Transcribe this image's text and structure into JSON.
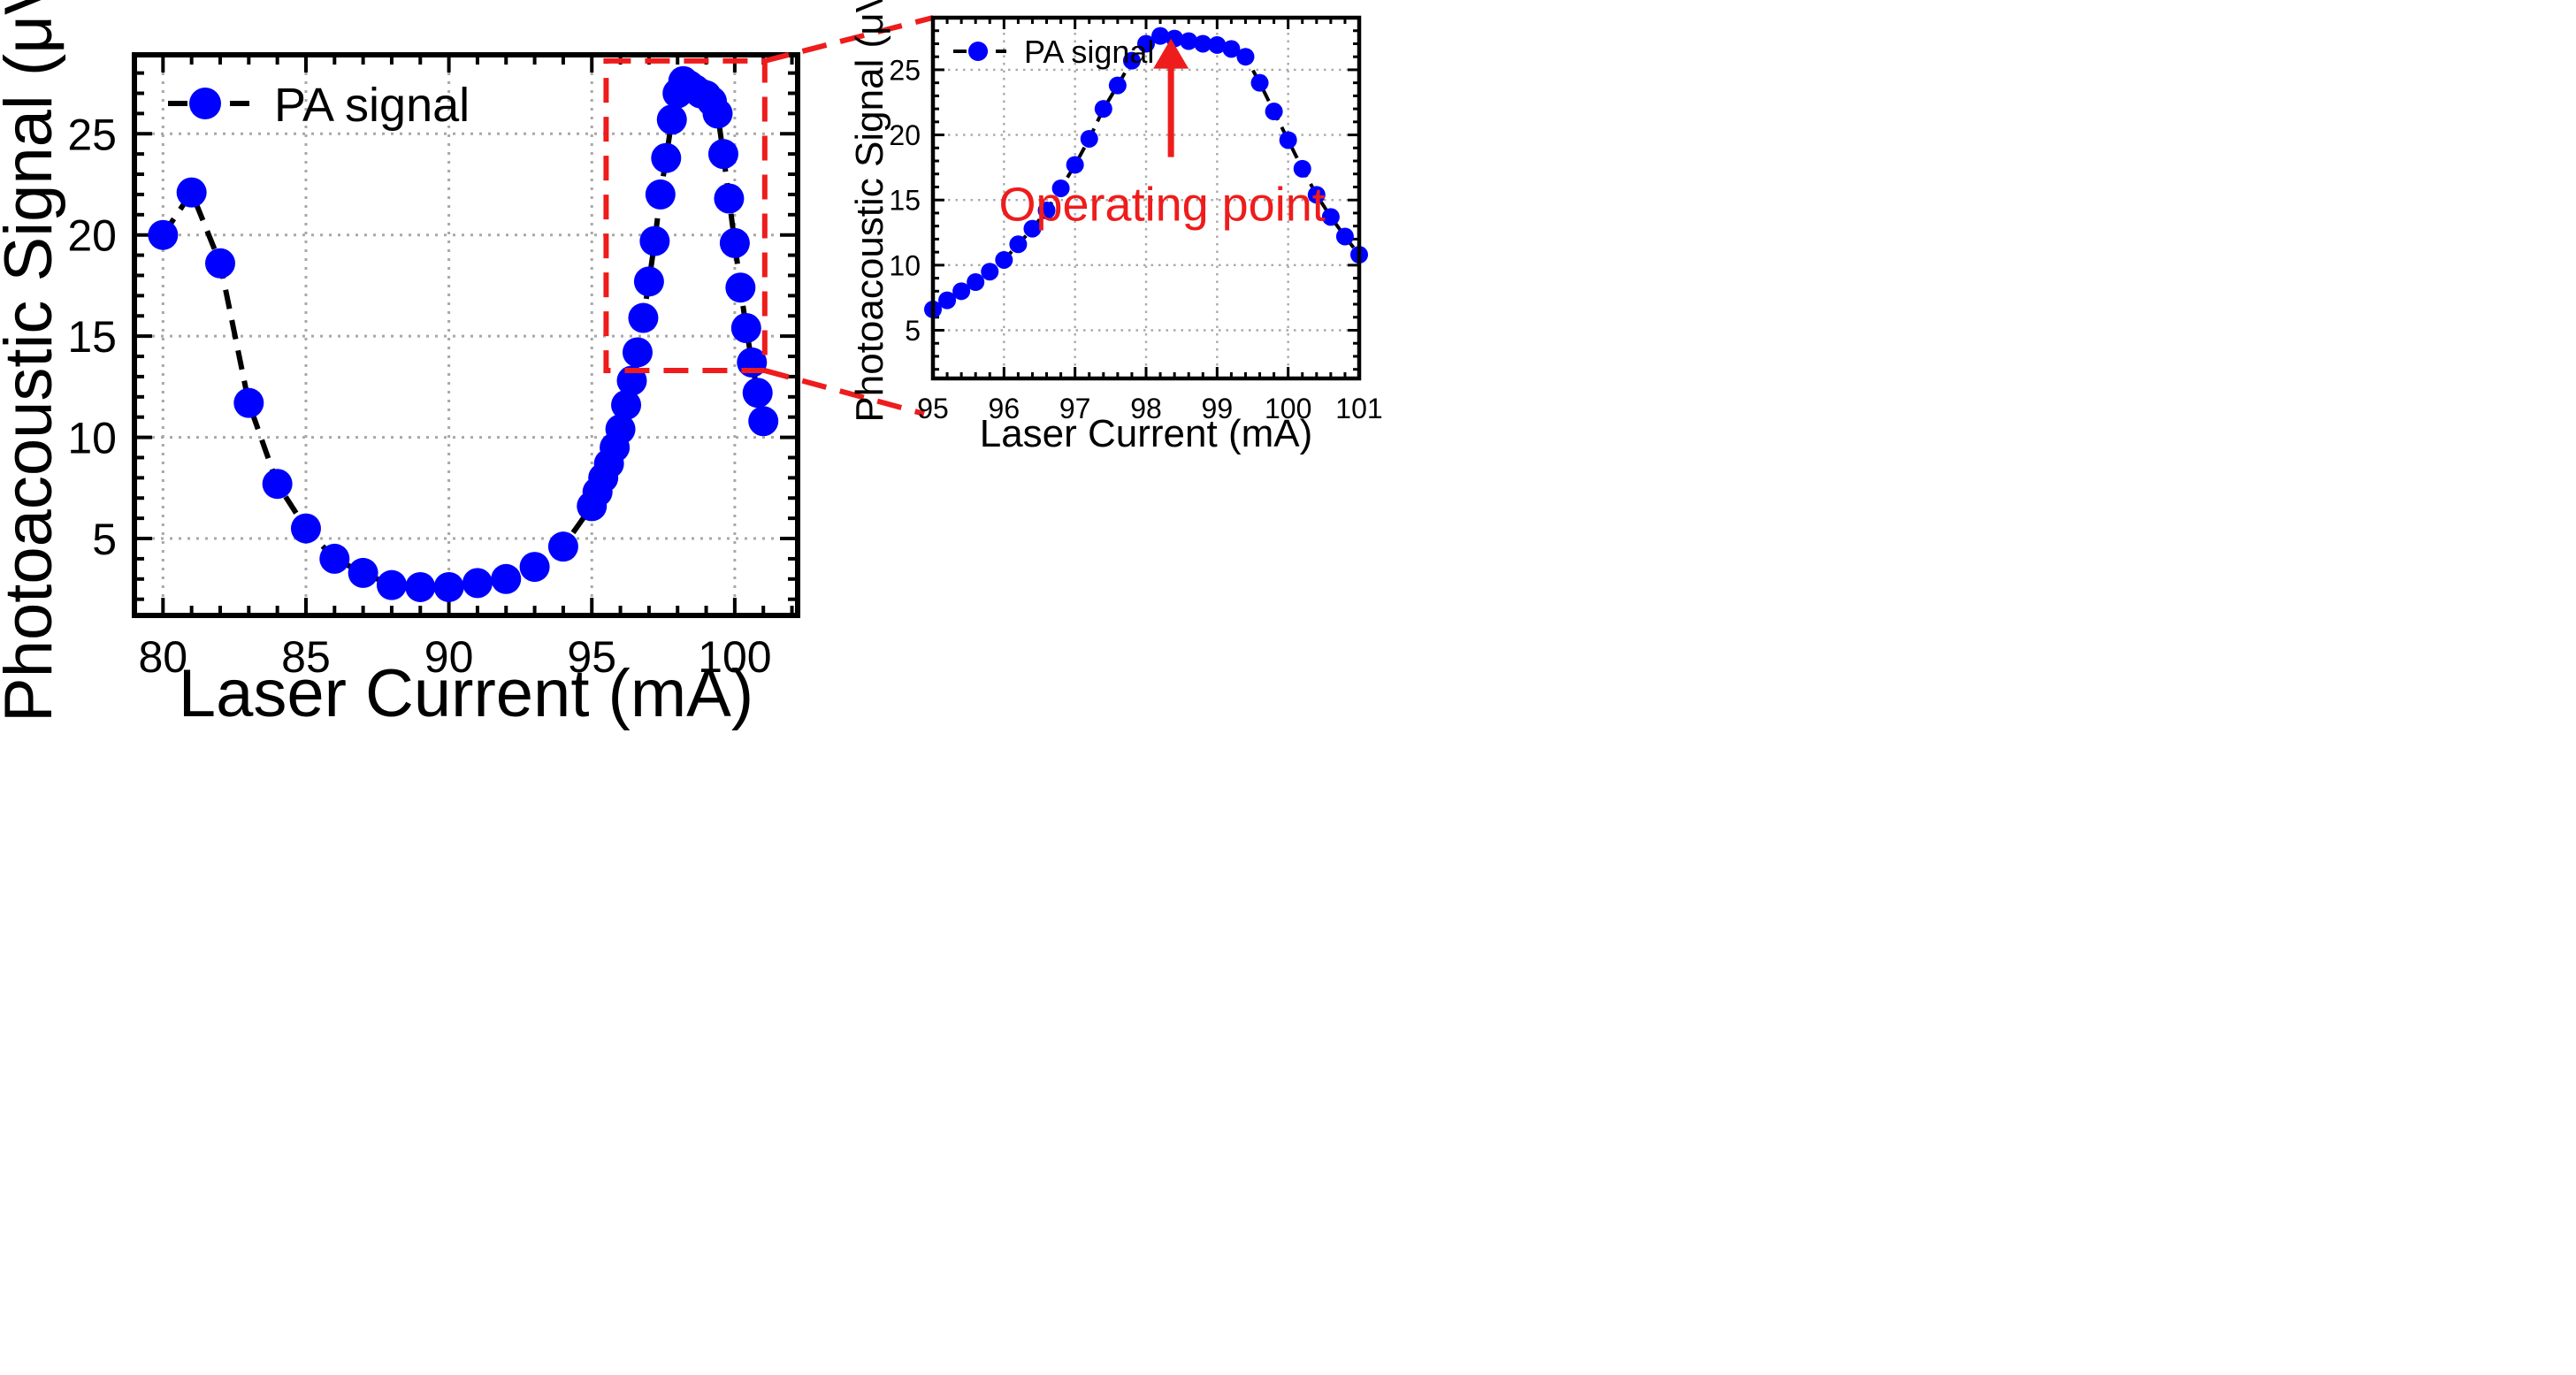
{
  "chart_data": [
    {
      "type": "line",
      "xlabel": "Laser Current (mA)",
      "ylabel": "Photoacoustic Signal (μV)",
      "xlim": [
        79,
        102.2
      ],
      "ylim": [
        1.2,
        28.9
      ],
      "xticks": [
        80,
        85,
        90,
        95,
        100
      ],
      "yticks": [
        5,
        10,
        15,
        20,
        25
      ],
      "xtick_labels": [
        "80",
        "85",
        "90",
        "95",
        "100"
      ],
      "ytick_labels": [
        "5",
        "10",
        "15",
        "20",
        "25"
      ],
      "minor_x_step": 1,
      "minor_y_step": 1,
      "grid": true,
      "legend": {
        "position": "top-left",
        "entries": [
          "PA signal"
        ]
      },
      "series": [
        {
          "name": "PA signal",
          "color": "#0000ff",
          "line_color": "#000000",
          "line_style": "dashed",
          "x": [
            80,
            81,
            82,
            83,
            84,
            85,
            86,
            87,
            88,
            89,
            90,
            91,
            92,
            93,
            94,
            95,
            95.2,
            95.4,
            95.6,
            95.8,
            96,
            96.2,
            96.4,
            96.6,
            96.8,
            97,
            97.2,
            97.4,
            97.6,
            97.8,
            98,
            98.2,
            98.4,
            98.6,
            98.8,
            99,
            99.2,
            99.4,
            99.6,
            99.8,
            100,
            100.2,
            100.4,
            100.6,
            100.8,
            101
          ],
          "y": [
            20,
            22.1,
            18.6,
            11.7,
            7.7,
            5.5,
            4,
            3.3,
            2.7,
            2.6,
            2.6,
            2.8,
            3,
            3.6,
            4.6,
            6.6,
            7.3,
            8,
            8.7,
            9.5,
            10.4,
            11.6,
            12.8,
            14.2,
            15.9,
            17.7,
            19.7,
            22,
            23.8,
            25.7,
            27,
            27.6,
            27.4,
            27.2,
            27,
            26.9,
            26.6,
            26,
            24,
            21.8,
            19.6,
            17.4,
            15.4,
            13.7,
            12.2,
            10.8
          ]
        }
      ]
    },
    {
      "type": "line",
      "xlabel": "Laser Current (mA)",
      "ylabel": "Photoacoustic Signal (μV)",
      "xlim": [
        95,
        101
      ],
      "ylim": [
        1.3,
        29
      ],
      "xticks": [
        95,
        96,
        97,
        98,
        99,
        100,
        101
      ],
      "yticks": [
        5,
        10,
        15,
        20,
        25
      ],
      "xtick_labels": [
        "95",
        "96",
        "97",
        "98",
        "99",
        "100",
        "101"
      ],
      "ytick_labels": [
        "5",
        "10",
        "15",
        "20",
        "25"
      ],
      "minor_x_step": 0.2,
      "minor_y_step": 1,
      "grid": true,
      "legend": {
        "position": "top-left",
        "entries": [
          "PA signal"
        ]
      },
      "annotations": [
        {
          "text": "Operating point",
          "color": "#ee1c1c",
          "arrow_to": [
            98.35,
            27.4
          ],
          "arrow_from": [
            98.35,
            18.3
          ]
        }
      ],
      "series": [
        {
          "name": "PA signal",
          "color": "#0000ff",
          "line_color": "#000000",
          "line_style": "dashed",
          "x": [
            95,
            95.2,
            95.4,
            95.6,
            95.8,
            96,
            96.2,
            96.4,
            96.6,
            96.8,
            97,
            97.2,
            97.4,
            97.6,
            97.8,
            98,
            98.2,
            98.4,
            98.6,
            98.8,
            99,
            99.2,
            99.4,
            99.6,
            99.8,
            100,
            100.2,
            100.4,
            100.6,
            100.8,
            101
          ],
          "y": [
            6.6,
            7.3,
            8,
            8.7,
            9.5,
            10.4,
            11.6,
            12.8,
            14.2,
            15.9,
            17.7,
            19.7,
            22,
            23.8,
            25.7,
            27,
            27.6,
            27.4,
            27.2,
            27,
            26.9,
            26.6,
            26,
            24,
            21.8,
            19.6,
            17.4,
            15.4,
            13.7,
            12.2,
            10.8
          ]
        }
      ]
    }
  ],
  "zoom_region": {
    "x_range": [
      95.5,
      101.05
    ],
    "y_range": [
      13.3,
      28.6
    ]
  }
}
